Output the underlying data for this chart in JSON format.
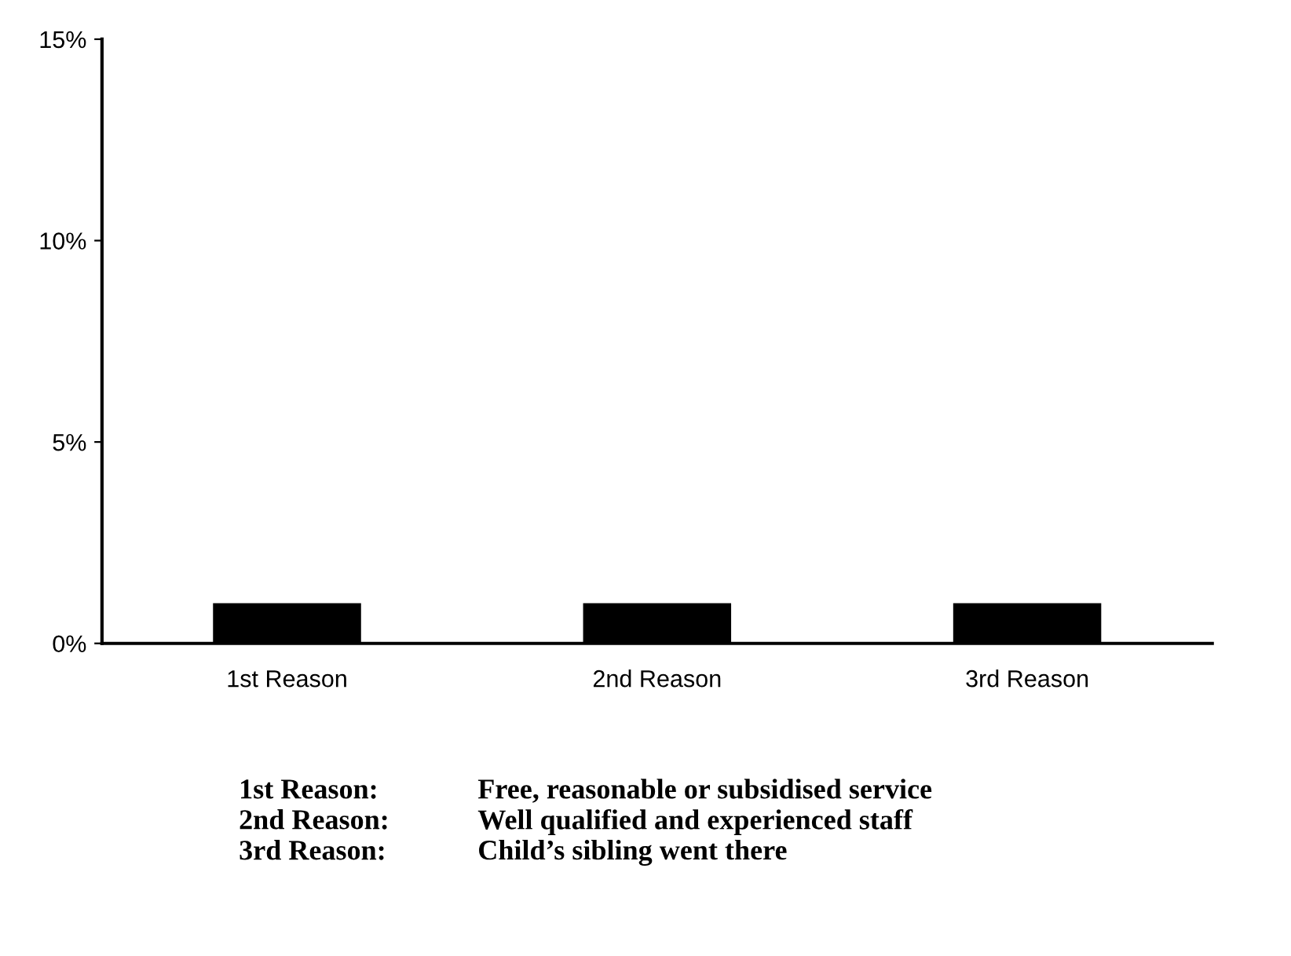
{
  "chart_data": {
    "type": "bar",
    "categories": [
      "1st Reason",
      "2nd Reason",
      "3rd Reason"
    ],
    "values": [
      1.0,
      1.0,
      1.0
    ],
    "color": "#000000",
    "ylim": [
      0,
      15
    ],
    "yticks": [
      {
        "value": 0,
        "label": "0%"
      },
      {
        "value": 5,
        "label": "5%"
      },
      {
        "value": 10,
        "label": "10%"
      },
      {
        "value": 15,
        "label": "15%"
      }
    ],
    "grid": false,
    "legend": false,
    "annotations": [
      "1st Reason:",
      "Free, reasonable or subsidised service",
      "2nd Reason:",
      "Well qualified and experienced staff",
      "3rd Reason:",
      "Child’s sibling went there"
    ]
  }
}
